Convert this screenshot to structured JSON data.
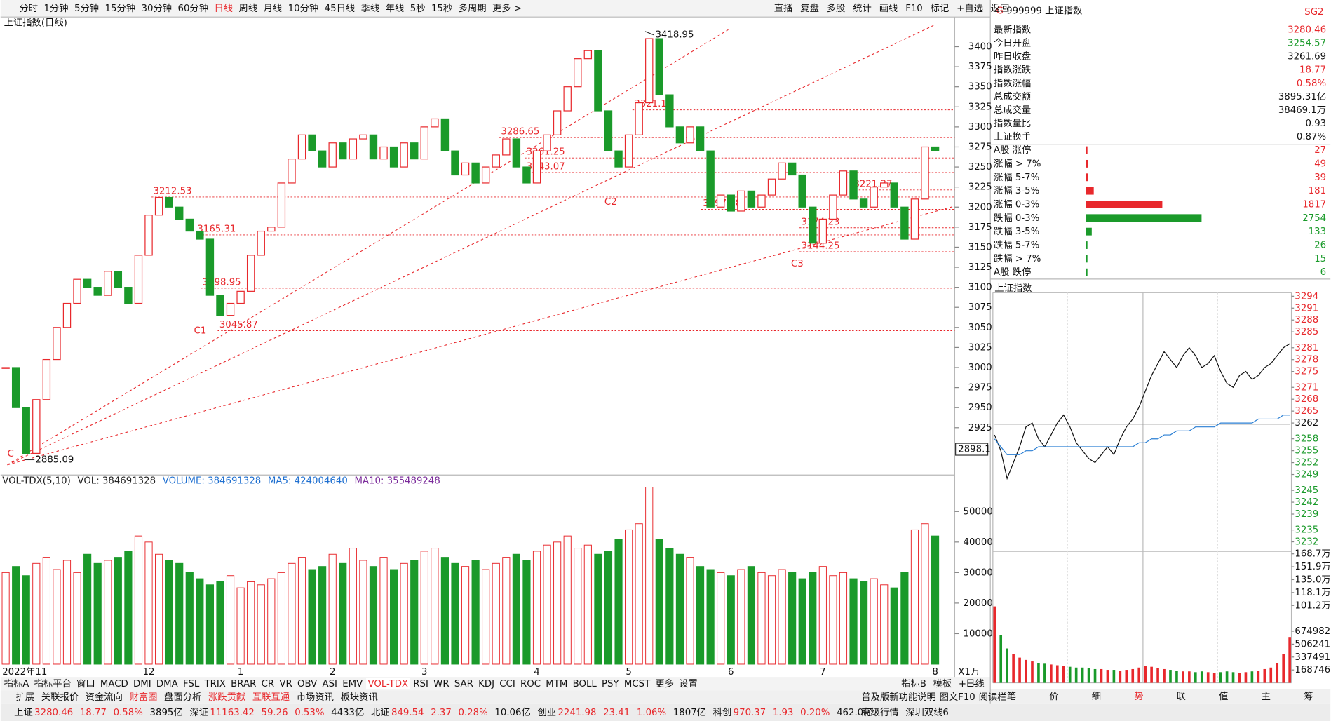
{
  "toolbar": {
    "periods": [
      "分时",
      "1分钟",
      "5分钟",
      "15分钟",
      "30分钟",
      "60分钟",
      "日线",
      "周线",
      "月线",
      "10分钟",
      "45日线",
      "季线",
      "年线",
      "5秒",
      "15秒",
      "多周期",
      "更多 >"
    ],
    "active": "日线",
    "actions": [
      "直播",
      "复盘",
      "多股",
      "统计",
      "画线",
      "F10",
      "标记",
      "+自选",
      "返回"
    ]
  },
  "chart_data": [
    {
      "type": "candlestick",
      "title": "上证指数(日线)",
      "categories": [
        "2022年11",
        null,
        null,
        null,
        null,
        null,
        null,
        null,
        null,
        null,
        null,
        null,
        null,
        null,
        "12",
        null,
        null,
        null,
        null,
        null,
        null,
        null,
        null,
        "1",
        null,
        null,
        null,
        null,
        null,
        null,
        null,
        null,
        "2",
        null,
        null,
        null,
        null,
        null,
        null,
        null,
        null,
        "3",
        null,
        null,
        null,
        null,
        null,
        null,
        null,
        null,
        null,
        null,
        "4",
        null,
        null,
        null,
        null,
        null,
        null,
        null,
        null,
        "5",
        null,
        null,
        null,
        null,
        null,
        null,
        null,
        null,
        null,
        "6",
        null,
        null,
        null,
        null,
        null,
        null,
        null,
        null,
        "7",
        null,
        null,
        null,
        null,
        null,
        null,
        null,
        null,
        null,
        null,
        "8"
      ],
      "values": [
        3000,
        2950,
        2893,
        2960,
        3010,
        3050,
        3080,
        3110,
        3100,
        3090,
        3120,
        3100,
        3080,
        3140,
        3190,
        3212,
        3200,
        3185,
        3170,
        3160,
        3090,
        3065,
        3080,
        3095,
        3140,
        3170,
        3175,
        3230,
        3260,
        3290,
        3270,
        3250,
        3280,
        3260,
        3285,
        3290,
        3260,
        3275,
        3250,
        3280,
        3260,
        3300,
        3310,
        3270,
        3240,
        3255,
        3230,
        3250,
        3265,
        3285,
        3250,
        3230,
        3270,
        3290,
        3320,
        3350,
        3385,
        3395,
        3320,
        3270,
        3250,
        3290,
        3330,
        3410,
        3340,
        3300,
        3280,
        3300,
        3270,
        3200,
        3215,
        3195,
        3220,
        3200,
        3215,
        3235,
        3255,
        3240,
        3200,
        3155,
        3185,
        3215,
        3245,
        3210,
        3200,
        3225,
        3230,
        3200,
        3160,
        3210,
        3275,
        3270
      ],
      "color_up": "#e8282c",
      "color_down": "#1a9a2a",
      "ylim": [
        2866,
        3437
      ],
      "yticks": [
        2925,
        2950,
        2975,
        3000,
        3025,
        3050,
        3075,
        3100,
        3125,
        3150,
        3175,
        3200,
        3225,
        3250,
        3275,
        3300,
        3325,
        3350,
        3375,
        3400
      ],
      "cursor_value": 2898.1,
      "price_levels": [
        3212.53,
        3165.31,
        3098.95,
        3045.87,
        3286.65,
        3261.25,
        3243.07,
        3321.19,
        3197.18,
        3174.23,
        3144.25,
        3221.37
      ],
      "high_label": 3418.95,
      "low_label": 2885.09,
      "annotations": [
        "C",
        "C1",
        "C2",
        "C3"
      ],
      "period_label": "日线"
    },
    {
      "type": "bar",
      "legend": [
        {
          "text": "VOL-TDX(5,10)",
          "color": "#222222"
        },
        {
          "text": "VOL: 384691328",
          "color": "#222222"
        },
        {
          "text": "VOLUME: 384691328",
          "color": "#1e6fd0"
        },
        {
          "text": "MA5: 424004640",
          "color": "#1e6fd0"
        },
        {
          "text": "MA10: 355489248",
          "color": "#7a2a9a"
        }
      ],
      "values": [
        30000,
        32000,
        29000,
        33000,
        35000,
        31000,
        34000,
        30000,
        36000,
        33000,
        34000,
        35000,
        37000,
        42000,
        40000,
        36000,
        34000,
        33000,
        30000,
        28000,
        26000,
        27000,
        29000,
        25000,
        27000,
        26000,
        28000,
        30000,
        33000,
        35000,
        31000,
        32000,
        36000,
        33000,
        38000,
        34000,
        32000,
        35000,
        31000,
        33000,
        34000,
        37000,
        38000,
        35000,
        33000,
        32000,
        34000,
        31000,
        33000,
        35000,
        36000,
        34000,
        37000,
        39000,
        40000,
        42000,
        38000,
        39000,
        36000,
        37000,
        41000,
        44000,
        46000,
        58000,
        41000,
        38000,
        36000,
        35000,
        32000,
        31000,
        30000,
        29000,
        31000,
        32000,
        30000,
        29000,
        31000,
        30000,
        28000,
        30000,
        32000,
        29000,
        30000,
        28000,
        27000,
        28000,
        26000,
        25000,
        30000,
        44000,
        46000,
        42000
      ],
      "ylim": [
        0,
        61400
      ],
      "yticks": [
        10000,
        20000,
        30000,
        40000,
        50000
      ],
      "unit": "X1万"
    },
    {
      "type": "line",
      "title": "上证指数",
      "series": [
        {
          "color": "#111111",
          "values": [
            3259,
            3255,
            3248,
            3252,
            3256,
            3261,
            3262,
            3258,
            3256,
            3259,
            3262,
            3264,
            3261,
            3257,
            3255,
            3253,
            3252,
            3254,
            3256,
            3254,
            3258,
            3261,
            3263,
            3266,
            3270,
            3274,
            3277,
            3280,
            3278,
            3276,
            3279,
            3281,
            3279,
            3276,
            3277,
            3279,
            3275,
            3272,
            3271,
            3274,
            3275,
            3273,
            3274,
            3276,
            3277,
            3279,
            3281,
            3282
          ]
        },
        {
          "color": "#2a7fd4",
          "values": [
            3258,
            3256,
            3254,
            3254,
            3254,
            3255,
            3255,
            3256,
            3256,
            3256,
            3256,
            3256,
            3256,
            3256,
            3256,
            3256,
            3256,
            3256,
            3256,
            3256,
            3256,
            3256,
            3256,
            3257,
            3257,
            3258,
            3258,
            3259,
            3259,
            3260,
            3260,
            3260,
            3261,
            3261,
            3261,
            3261,
            3262,
            3262,
            3262,
            3262,
            3262,
            3262,
            3263,
            3263,
            3263,
            3263,
            3264,
            3264
          ]
        }
      ],
      "ylim": [
        3229.6,
        3294.9
      ],
      "yticks": [
        3232,
        3235,
        3239,
        3242,
        3245,
        3249,
        3252,
        3255,
        3258,
        3262,
        3265,
        3268,
        3271,
        3275,
        3278,
        3281,
        3285,
        3288,
        3291,
        3294
      ]
    },
    {
      "type": "bar",
      "values": [
        1000000,
        620000,
        450000,
        380000,
        330000,
        300000,
        280000,
        260000,
        250000,
        240000,
        230000,
        220000,
        210000,
        200000,
        200000,
        190000,
        180000,
        180000,
        170000,
        170000,
        160000,
        170000,
        180000,
        200000,
        220000,
        210000,
        190000,
        180000,
        170000,
        160000,
        150000,
        150000,
        140000,
        150000,
        140000,
        130000,
        140000,
        150000,
        140000,
        130000,
        140000,
        150000,
        160000,
        180000,
        200000,
        260000,
        380000,
        600000
      ],
      "ylim": [
        0,
        1720000
      ],
      "yticks": [
        168746,
        337491,
        506241,
        674982,
        {
          "value": 1012000,
          "label": "101.2万"
        },
        {
          "value": 1181000,
          "label": "118.1万"
        },
        {
          "value": 1350000,
          "label": "135.0万"
        },
        {
          "value": 1519000,
          "label": "151.9万"
        },
        {
          "value": 1687000,
          "label": "168.7万"
        }
      ]
    }
  ],
  "quote": {
    "flag": "G",
    "symbol": "999999 上证指数",
    "tag": "SG2",
    "rows": [
      {
        "name": "最新指数",
        "value": 3280.46,
        "color": "#e8282c"
      },
      {
        "name": "今日开盘",
        "value": 3254.57,
        "color": "#1a9a2a"
      },
      {
        "name": "昨日收盘",
        "value": 3261.69,
        "color": "#111111"
      },
      {
        "name": "指数涨跌",
        "value": 18.77,
        "color": "#e8282c"
      },
      {
        "name": "指数涨幅",
        "value": "0.58%",
        "color": "#e8282c"
      },
      {
        "name": "总成交额",
        "value": "3895.31亿",
        "color": "#111111"
      },
      {
        "name": "总成交量",
        "value": "38469.1万",
        "color": "#111111"
      },
      {
        "name": "指数量比",
        "value": 0.93,
        "color": "#111111"
      },
      {
        "name": "上证换手",
        "value": "0.87%",
        "color": "#111111"
      }
    ],
    "breadth": [
      {
        "name": "A股 涨停",
        "value": 27,
        "color": "#e8282c"
      },
      {
        "name": "涨幅 > 7%",
        "value": 49,
        "color": "#e8282c"
      },
      {
        "name": "涨幅 5-7%",
        "value": 39,
        "color": "#e8282c"
      },
      {
        "name": "涨幅 3-5%",
        "value": 181,
        "color": "#e8282c"
      },
      {
        "name": "涨幅 0-3%",
        "value": 1817,
        "color": "#e8282c"
      },
      {
        "name": "跌幅 0-3%",
        "value": 2754,
        "color": "#1a9a2a"
      },
      {
        "name": "跌幅 3-5%",
        "value": 133,
        "color": "#1a9a2a"
      },
      {
        "name": "跌幅 5-7%",
        "value": 26,
        "color": "#1a9a2a"
      },
      {
        "name": "跌幅 > 7%",
        "value": 15,
        "color": "#1a9a2a"
      },
      {
        "name": "A股 跌停",
        "value": 6,
        "color": "#1a9a2a"
      }
    ],
    "tabs": [
      "笔",
      "价",
      "细",
      "势",
      "联",
      "值",
      "主",
      "筹"
    ],
    "active_tab": "势"
  },
  "indicator_bar": {
    "left": [
      "指标A",
      "指标平台",
      "窗口",
      "MACD",
      "DMI",
      "DMA",
      "FSL",
      "TRIX",
      "BRAR",
      "CR",
      "VR",
      "OBV",
      "ASI",
      "EMV",
      "VOL-TDX",
      "RSI",
      "WR",
      "SAR",
      "KDJ",
      "CCI",
      "ROC",
      "MTM",
      "BOLL",
      "PSY",
      "MCST",
      "更多",
      "设置"
    ],
    "active": "VOL-TDX",
    "right": [
      "指标B",
      "模板",
      "+",
      "-"
    ]
  },
  "info_bar": {
    "left": [
      "扩展",
      "关联报价",
      "资金流向",
      "财富圈",
      "盘面分析",
      "涨跌贡献",
      "互联互通",
      "市场资讯",
      "板块资讯"
    ],
    "highlight": [
      "财富圈",
      "涨跌贡献",
      "互联互通"
    ],
    "right": [
      "普及版新功能说明",
      "图文F10",
      "阅读栏"
    ]
  },
  "status_bar": {
    "markets": [
      {
        "name": "上证",
        "values": [
          3280.46,
          18.77,
          "0.58%",
          "3895亿"
        ]
      },
      {
        "name": "深证",
        "values": [
          11163.42,
          59.26,
          "0.53%",
          "4433亿"
        ]
      },
      {
        "name": "北证",
        "values": [
          849.54,
          2.37,
          "0.28%",
          "10.06亿"
        ]
      },
      {
        "name": "创业",
        "values": [
          2241.98,
          23.41,
          "1.06%",
          "1807亿"
        ]
      },
      {
        "name": "科创",
        "values": [
          970.37,
          1.93,
          "0.20%",
          "462.0亿"
        ]
      }
    ],
    "right": [
      "高级行情",
      "深圳双线6"
    ]
  }
}
